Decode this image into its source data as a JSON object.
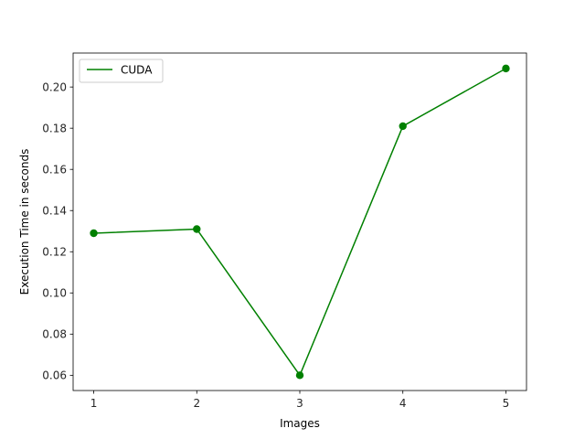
{
  "chart_data": {
    "type": "line",
    "title": "",
    "xlabel": "Images",
    "ylabel": "Execution Time in seconds",
    "x": [
      1,
      2,
      3,
      4,
      5
    ],
    "series": [
      {
        "name": "CUDA",
        "values": [
          0.129,
          0.131,
          0.06,
          0.181,
          0.209
        ],
        "color": "#008000",
        "marker": "circle"
      }
    ],
    "xlim": [
      0.8,
      5.2
    ],
    "ylim": [
      0.0526,
      0.2165
    ],
    "xticks": [
      1,
      2,
      3,
      4,
      5
    ],
    "xtick_labels": [
      "1",
      "2",
      "3",
      "4",
      "5"
    ],
    "yticks": [
      0.06,
      0.08,
      0.1,
      0.12,
      0.14,
      0.16,
      0.18,
      0.2
    ],
    "ytick_labels": [
      "0.06",
      "0.08",
      "0.10",
      "0.12",
      "0.14",
      "0.16",
      "0.18",
      "0.20"
    ],
    "grid": false,
    "legend": {
      "position": "upper-left"
    }
  }
}
